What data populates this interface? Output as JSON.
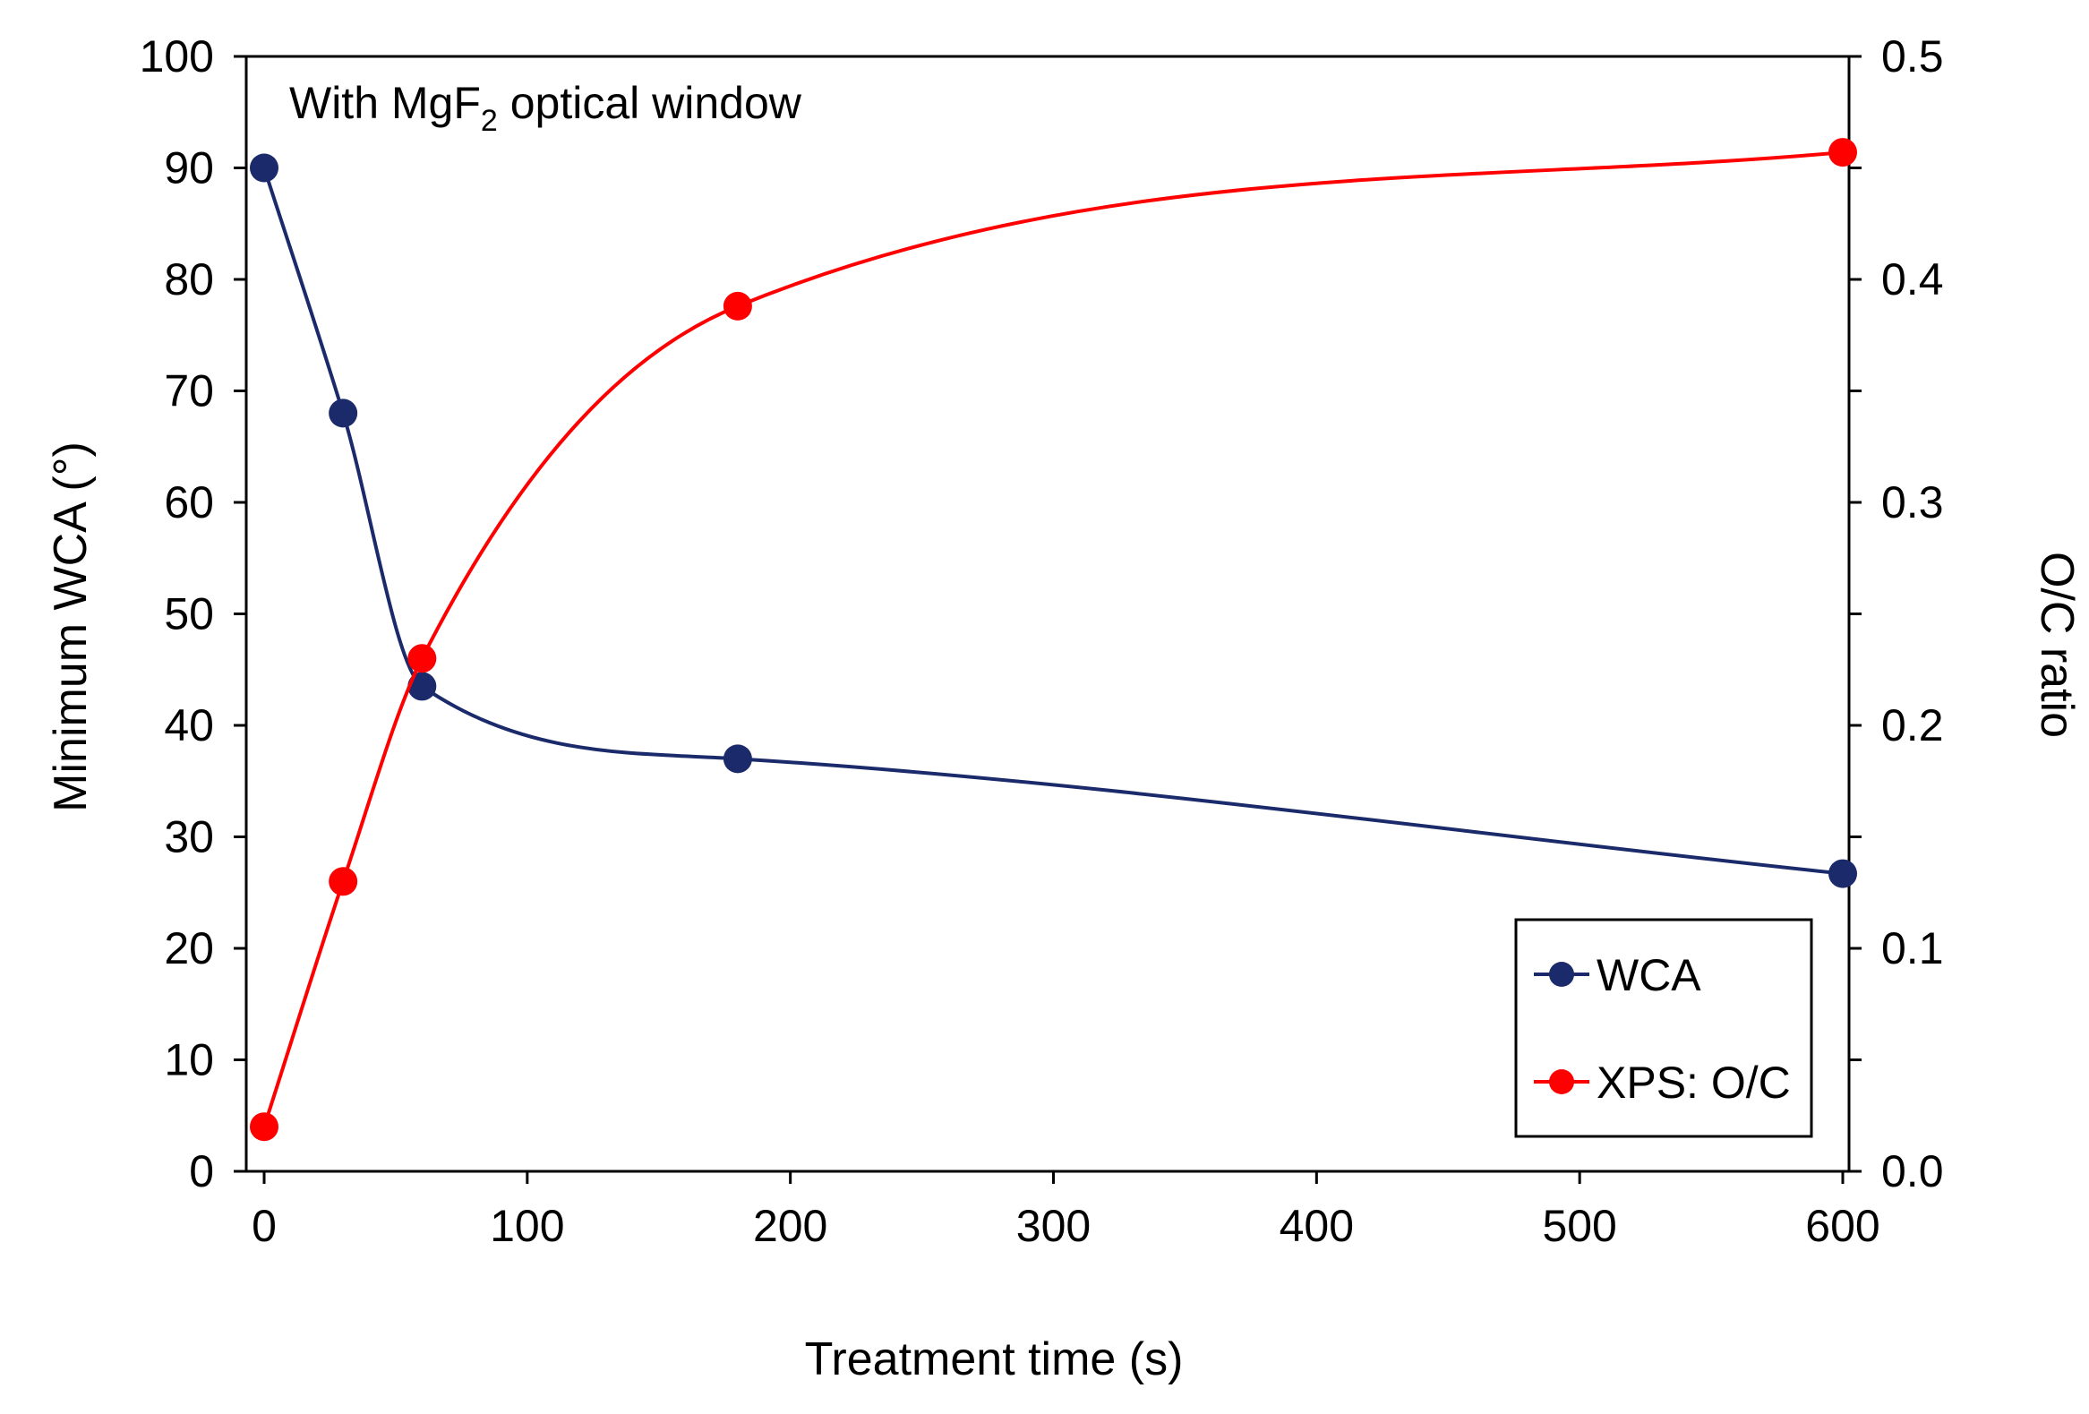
{
  "chart_data": {
    "type": "line",
    "title": "",
    "annotation": {
      "prefix": "With MgF",
      "subscript": "2",
      "suffix": " optical window"
    },
    "xlabel": "Treatment time (s)",
    "ylabel_left": "Minimum WCA (°)",
    "ylabel_right": "O/C ratio",
    "xlim": [
      0,
      600
    ],
    "ylim_left": [
      0,
      100
    ],
    "ylim_right": [
      0,
      0.5
    ],
    "x_ticks": [
      "0",
      "100",
      "200",
      "300",
      "400",
      "500",
      "600"
    ],
    "y_left_ticks": [
      "0",
      "10",
      "20",
      "30",
      "40",
      "50",
      "60",
      "70",
      "80",
      "90",
      "100"
    ],
    "y_right_ticks": [
      "0.0",
      "0.1",
      "0.2",
      "0.3",
      "0.4",
      "0.5"
    ],
    "grid": false,
    "legend_position": "bottom-right",
    "series": [
      {
        "name": "WCA",
        "axis": "left",
        "color": "#1b2a6b",
        "x": [
          0,
          30,
          60,
          180,
          600
        ],
        "values": [
          90,
          68,
          43.5,
          37,
          26.7
        ]
      },
      {
        "name": "XPS: O/C",
        "axis": "right",
        "color": "#ff0000",
        "x": [
          0,
          30,
          60,
          180,
          600
        ],
        "values": [
          0.02,
          0.13,
          0.23,
          0.388,
          0.457
        ]
      }
    ]
  }
}
